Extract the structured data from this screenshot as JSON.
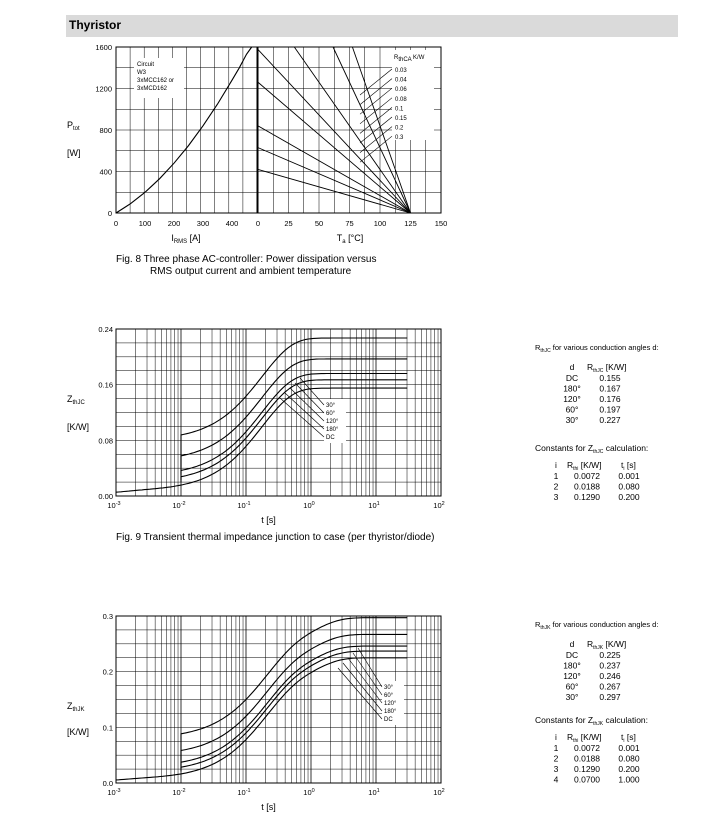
{
  "header": {
    "title": "Thyristor"
  },
  "fig8": {
    "caption_line1": "Fig. 8  Three phase AC-controller: Power dissipation versus",
    "caption_line2": "RMS output current and ambient temperature",
    "left": {
      "ylabel_main": "P",
      "ylabel_sub": "tot",
      "ylabel_unit": "[W]",
      "xlabel_main": "I",
      "xlabel_sub": "RMS",
      "xlabel_unit": "[A]",
      "yticks": [
        "0",
        "400",
        "800",
        "1200",
        "1600"
      ],
      "xticks": [
        "0",
        "100",
        "200",
        "300",
        "400"
      ],
      "ylim": [
        0,
        1600
      ],
      "xlim": [
        0,
        500
      ],
      "legend": [
        "Circuit",
        "W3",
        "3xMCC162 or",
        "3xMCD162"
      ],
      "curve": [
        [
          0,
          0
        ],
        [
          50,
          90
        ],
        [
          100,
          200
        ],
        [
          150,
          330
        ],
        [
          200,
          480
        ],
        [
          250,
          650
        ],
        [
          300,
          840
        ],
        [
          350,
          1050
        ],
        [
          400,
          1280
        ],
        [
          425,
          1400
        ],
        [
          450,
          1530
        ],
        [
          468,
          1600
        ]
      ]
    },
    "right": {
      "xlabel_main": "T",
      "xlabel_sub": "a",
      "xlabel_unit": "[°C]",
      "xticks": [
        "0",
        "25",
        "50",
        "75",
        "100",
        "125",
        "150"
      ],
      "xlim": [
        0,
        150
      ],
      "ylim": [
        0,
        1600
      ],
      "rth_label_main": "R",
      "rth_label_sub": "thCA",
      "rth_label_unit": "K/W",
      "rth_values": [
        "0.03",
        "0.04",
        "0.06",
        "0.08",
        "0.1",
        "0.15",
        "0.2",
        "0.3"
      ],
      "lines_p0": [
        4200,
        3150,
        2100,
        1575,
        1260,
        840,
        630,
        420
      ],
      "tj": 125
    }
  },
  "fig9": {
    "caption": "Fig. 9  Transient thermal impedance junction to case (per thyristor/diode)",
    "ylabel_main": "Z",
    "ylabel_sub": "thJC",
    "ylabel_unit": "[K/W]",
    "xlabel": "t  [s]",
    "yticks": [
      "0.00",
      "0.08",
      "0.16",
      "0.24"
    ],
    "ylim": [
      0,
      0.24
    ],
    "xticks": [
      {
        "b": "10",
        "e": "-3"
      },
      {
        "b": "10",
        "e": "-2"
      },
      {
        "b": "10",
        "e": "-1"
      },
      {
        "b": "10",
        "e": "0"
      },
      {
        "b": "10",
        "e": "1"
      },
      {
        "b": "10",
        "e": "2"
      }
    ],
    "xlim_exp": [
      -3,
      2
    ],
    "legend": [
      "30°",
      "60°",
      "120°",
      "180°",
      "DC"
    ],
    "rth_dc": [
      0.0072,
      0.0188,
      0.129
    ],
    "tau": [
      0.001,
      0.08,
      0.2
    ],
    "angle_add": [
      0.072,
      0.042,
      0.021,
      0.012
    ],
    "table_title_main": "R",
    "table_title_sub": "thJC",
    "table_title_rest": " for various conduction angles d:",
    "table_head": [
      "d",
      "R",
      "thJC",
      " [K/W]"
    ],
    "table_rows": [
      [
        "DC",
        "0.155"
      ],
      [
        "180°",
        "0.167"
      ],
      [
        "120°",
        "0.176"
      ],
      [
        "60°",
        "0.197"
      ],
      [
        "30°",
        "0.227"
      ]
    ],
    "const_title_pre": "Constants for Z",
    "const_title_sub": "thJC",
    "const_title_post": " calculation:",
    "const_head": [
      "i",
      "R",
      "thi",
      " [K/W]",
      "t",
      "i",
      " [s]"
    ],
    "const_rows": [
      [
        "1",
        "0.0072",
        "0.001"
      ],
      [
        "2",
        "0.0188",
        "0.080"
      ],
      [
        "3",
        "0.1290",
        "0.200"
      ]
    ]
  },
  "fig10": {
    "ylabel_main": "Z",
    "ylabel_sub": "thJK",
    "ylabel_unit": "[K/W]",
    "xlabel": "t  [s]",
    "yticks": [
      "0.0",
      "0.1",
      "0.2",
      "0.3"
    ],
    "ylim": [
      0,
      0.3
    ],
    "xticks": [
      {
        "b": "10",
        "e": "-3"
      },
      {
        "b": "10",
        "e": "-2"
      },
      {
        "b": "10",
        "e": "-1"
      },
      {
        "b": "10",
        "e": "0"
      },
      {
        "b": "10",
        "e": "1"
      },
      {
        "b": "10",
        "e": "2"
      }
    ],
    "xlim_exp": [
      -3,
      2
    ],
    "legend": [
      "30°",
      "60°",
      "120°",
      "180°",
      "DC"
    ],
    "rth_dc": [
      0.0072,
      0.0188,
      0.129,
      0.07
    ],
    "tau": [
      0.001,
      0.08,
      0.2,
      1.0
    ],
    "angle_add": [
      0.072,
      0.042,
      0.021,
      0.012
    ],
    "table_title_main": "R",
    "table_title_sub": "thJK",
    "table_title_rest": " for various conduction angles d:",
    "table_head": [
      "d",
      "R",
      "thJK",
      " [K/W]"
    ],
    "table_rows": [
      [
        "DC",
        "0.225"
      ],
      [
        "180°",
        "0.237"
      ],
      [
        "120°",
        "0.246"
      ],
      [
        "60°",
        "0.267"
      ],
      [
        "30°",
        "0.297"
      ]
    ],
    "const_title_pre": "Constants for Z",
    "const_title_sub": "thJK",
    "const_title_post": " calculation:",
    "const_head": [
      "i",
      "R",
      "thi",
      " [K/W]",
      "t",
      "i",
      " [s]"
    ],
    "const_rows": [
      [
        "1",
        "0.0072",
        "0.001"
      ],
      [
        "2",
        "0.0188",
        "0.080"
      ],
      [
        "3",
        "0.1290",
        "0.200"
      ],
      [
        "4",
        "0.0700",
        "1.000"
      ]
    ]
  }
}
